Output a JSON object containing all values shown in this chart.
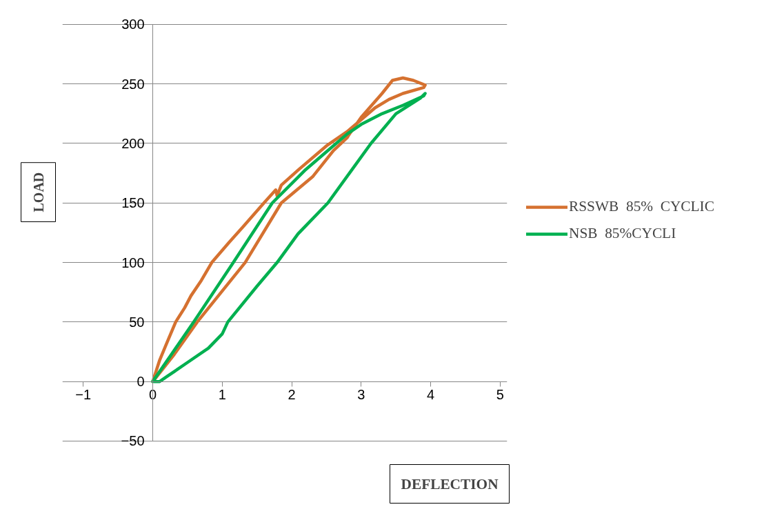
{
  "chart_data": {
    "type": "line",
    "xlabel": "DEFLECTION",
    "ylabel": "LOAD",
    "xlim": [
      -1,
      5
    ],
    "xticks": [
      -1,
      0,
      1,
      2,
      3,
      4,
      5
    ],
    "ylim": [
      -50,
      300
    ],
    "yticks": [
      -50,
      0,
      50,
      100,
      150,
      200,
      250,
      300
    ],
    "grid": "y",
    "legend": "right",
    "marker": "none",
    "line_style": "solid",
    "series": [
      {
        "name": "RSSWB  85%  CYCLIC",
        "color": "#d57130",
        "x": [
          0,
          0.1,
          0.2,
          0.33,
          0.46,
          0.55,
          0.7,
          0.85,
          1.1,
          1.3,
          1.6,
          1.77,
          1.79,
          1.85,
          2.1,
          2.5,
          2.8,
          3.0,
          3.2,
          3.4,
          3.6,
          3.9,
          3.92,
          3.75,
          3.6,
          3.45,
          3.3,
          3.0,
          2.82,
          2.8,
          2.6,
          2.3,
          1.85,
          1.33,
          0.64,
          0.3,
          0.03
        ],
        "values": [
          0,
          18,
          32,
          50,
          62,
          72,
          85,
          100,
          117,
          130,
          150,
          161,
          156,
          165,
          178,
          198,
          210,
          220,
          230,
          237,
          242,
          247,
          249,
          253,
          255,
          253,
          242,
          222,
          207,
          205,
          194,
          172,
          150,
          100,
          50,
          22,
          2
        ]
      },
      {
        "name": "NSB  85%CYCLI",
        "color": "#00b050",
        "x": [
          0,
          0.59,
          1.16,
          1.72,
          2.2,
          2.5,
          2.8,
          3.0,
          3.3,
          3.6,
          3.9,
          3.92,
          3.85,
          3.5,
          3.14,
          2.52,
          2.09,
          1.79,
          1.5,
          1.08,
          1.0,
          0.8,
          0.5,
          0.2,
          0.1,
          0.02
        ],
        "values": [
          0,
          50,
          100,
          150,
          178,
          193,
          208,
          216,
          225,
          232,
          240,
          242,
          238,
          225,
          200,
          150,
          124,
          100,
          80,
          50,
          40,
          28,
          16,
          4,
          0,
          0
        ]
      }
    ]
  }
}
